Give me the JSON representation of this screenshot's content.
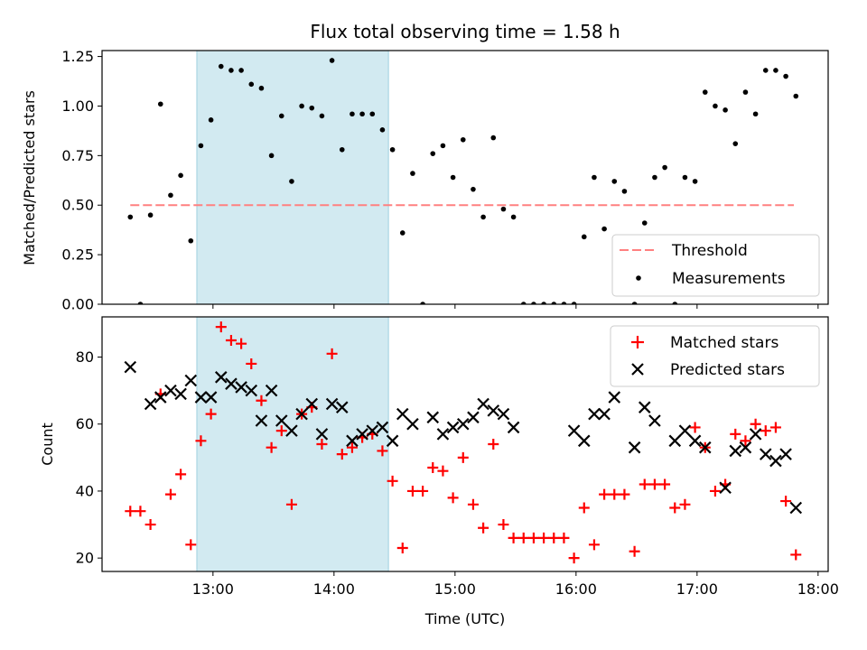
{
  "chart_data": [
    {
      "type": "scatter",
      "title": "Flux total observing time = 1.58 h",
      "ylabel": "Matched/Predicted stars",
      "xlabel": "",
      "xlim": [
        "12:05",
        "18:05"
      ],
      "ylim": [
        0,
        1.28
      ],
      "yticks": [
        0.0,
        0.25,
        0.5,
        0.75,
        1.0,
        1.25
      ],
      "ytick_labels": [
        "0.00",
        "0.25",
        "0.50",
        "0.75",
        "1.00",
        "1.25"
      ],
      "shaded_region": {
        "x_start": "12:52",
        "x_end": "14:27",
        "color": "#add8e6"
      },
      "threshold": {
        "name": "Threshold",
        "value": 0.5,
        "x_start": "12:19",
        "x_end": "17:48",
        "color": "#ff8080",
        "style": "dashed"
      },
      "legend": {
        "position": "bottom-right",
        "entries": [
          "Threshold",
          "Measurements"
        ]
      },
      "series": [
        {
          "name": "Measurements",
          "color": "#000000",
          "marker": "dot",
          "x": [
            "12:19",
            "12:24",
            "12:29",
            "12:34",
            "12:39",
            "12:44",
            "12:49",
            "12:54",
            "12:59",
            "13:04",
            "13:09",
            "13:14",
            "13:19",
            "13:24",
            "13:29",
            "13:34",
            "13:39",
            "13:44",
            "13:49",
            "13:54",
            "13:59",
            "14:04",
            "14:09",
            "14:14",
            "14:19",
            "14:24",
            "14:29",
            "14:34",
            "14:39",
            "14:44",
            "14:49",
            "14:54",
            "14:59",
            "15:04",
            "15:09",
            "15:14",
            "15:19",
            "15:24",
            "15:29",
            "15:34",
            "15:39",
            "15:44",
            "15:49",
            "15:54",
            "15:59",
            "16:04",
            "16:09",
            "16:14",
            "16:19",
            "16:24",
            "16:29",
            "16:34",
            "16:39",
            "16:44",
            "16:49",
            "16:54",
            "16:59",
            "17:04",
            "17:09",
            "17:14",
            "17:19",
            "17:24",
            "17:29",
            "17:34",
            "17:39",
            "17:44",
            "17:49"
          ],
          "y": [
            0.44,
            0.0,
            0.45,
            1.01,
            0.55,
            0.65,
            0.32,
            0.8,
            0.93,
            1.2,
            1.18,
            1.18,
            1.11,
            1.09,
            0.75,
            0.95,
            0.62,
            1.0,
            0.99,
            0.95,
            1.23,
            0.78,
            0.96,
            0.96,
            0.96,
            0.88,
            0.78,
            0.36,
            0.66,
            0.0,
            0.76,
            0.8,
            0.64,
            0.83,
            0.58,
            0.44,
            0.84,
            0.48,
            0.44,
            0.0,
            0.0,
            0.0,
            0.0,
            0.0,
            0.0,
            0.34,
            0.64,
            0.38,
            0.62,
            0.57,
            0.0,
            0.41,
            0.64,
            0.69,
            0.0,
            0.64,
            0.62,
            1.07,
            1.0,
            0.98,
            0.81,
            1.07,
            0.96,
            1.18,
            1.18,
            1.15,
            1.05
          ]
        }
      ]
    },
    {
      "type": "scatter",
      "title": "",
      "ylabel": "Count",
      "xlabel": "Time (UTC)",
      "xlim": [
        "12:05",
        "18:05"
      ],
      "ylim": [
        16,
        92
      ],
      "xticks": [
        "13:00",
        "14:00",
        "15:00",
        "16:00",
        "17:00",
        "18:00"
      ],
      "yticks": [
        20,
        40,
        60,
        80
      ],
      "ytick_labels": [
        "20",
        "40",
        "60",
        "80"
      ],
      "shaded_region": {
        "x_start": "12:52",
        "x_end": "14:27",
        "color": "#add8e6"
      },
      "legend": {
        "position": "top-right",
        "entries": [
          "Matched stars",
          "Predicted stars"
        ]
      },
      "series": [
        {
          "name": "Matched stars",
          "color": "#ff0000",
          "marker": "plus",
          "x": [
            "12:19",
            "12:24",
            "12:29",
            "12:34",
            "12:39",
            "12:44",
            "12:49",
            "12:54",
            "12:59",
            "13:04",
            "13:09",
            "13:14",
            "13:19",
            "13:24",
            "13:29",
            "13:34",
            "13:39",
            "13:44",
            "13:49",
            "13:54",
            "13:59",
            "14:04",
            "14:09",
            "14:14",
            "14:19",
            "14:24",
            "14:29",
            "14:34",
            "14:39",
            "14:44",
            "14:49",
            "14:54",
            "14:59",
            "15:04",
            "15:09",
            "15:14",
            "15:19",
            "15:24",
            "15:29",
            "15:34",
            "15:39",
            "15:44",
            "15:49",
            "15:54",
            "15:59",
            "16:04",
            "16:09",
            "16:14",
            "16:19",
            "16:24",
            "16:29",
            "16:34",
            "16:39",
            "16:44",
            "16:49",
            "16:54",
            "16:59",
            "17:04",
            "17:09",
            "17:14",
            "17:19",
            "17:24",
            "17:29",
            "17:34",
            "17:39",
            "17:44",
            "17:49"
          ],
          "y": [
            34,
            34,
            30,
            69,
            39,
            45,
            24,
            55,
            63,
            89,
            85,
            84,
            78,
            67,
            53,
            58,
            36,
            63,
            65,
            54,
            81,
            51,
            53,
            56,
            57,
            52,
            43,
            23,
            40,
            40,
            47,
            46,
            38,
            50,
            36,
            29,
            54,
            30,
            26,
            26,
            26,
            26,
            26,
            26,
            20,
            35,
            24,
            39,
            39,
            39,
            22,
            42,
            42,
            42,
            35,
            36,
            59,
            53,
            40,
            42,
            57,
            55,
            60,
            58,
            59,
            37,
            21
          ]
        },
        {
          "name": "Predicted stars",
          "color": "#000000",
          "marker": "cross",
          "x": [
            "12:19",
            "12:29",
            "12:34",
            "12:39",
            "12:44",
            "12:49",
            "12:54",
            "12:59",
            "13:04",
            "13:09",
            "13:14",
            "13:19",
            "13:24",
            "13:29",
            "13:34",
            "13:39",
            "13:44",
            "13:49",
            "13:54",
            "13:59",
            "14:04",
            "14:09",
            "14:14",
            "14:19",
            "14:24",
            "14:29",
            "14:34",
            "14:39",
            "14:49",
            "14:54",
            "14:59",
            "15:04",
            "15:09",
            "15:14",
            "15:19",
            "15:24",
            "15:29",
            "15:59",
            "16:04",
            "16:09",
            "16:14",
            "16:19",
            "16:29",
            "16:34",
            "16:39",
            "16:49",
            "16:54",
            "16:59",
            "17:04",
            "17:14",
            "17:19",
            "17:24",
            "17:29",
            "17:34",
            "17:39",
            "17:44",
            "17:49"
          ],
          "y": [
            77,
            66,
            68,
            70,
            69,
            73,
            68,
            68,
            74,
            72,
            71,
            70,
            61,
            70,
            61,
            58,
            63,
            66,
            57,
            66,
            65,
            55,
            57,
            58,
            59,
            55,
            63,
            60,
            62,
            57,
            59,
            60,
            62,
            66,
            64,
            63,
            59,
            58,
            55,
            63,
            63,
            68,
            53,
            65,
            61,
            55,
            58,
            55,
            53,
            41,
            52,
            53,
            57,
            51,
            49,
            51,
            35
          ]
        }
      ]
    }
  ]
}
